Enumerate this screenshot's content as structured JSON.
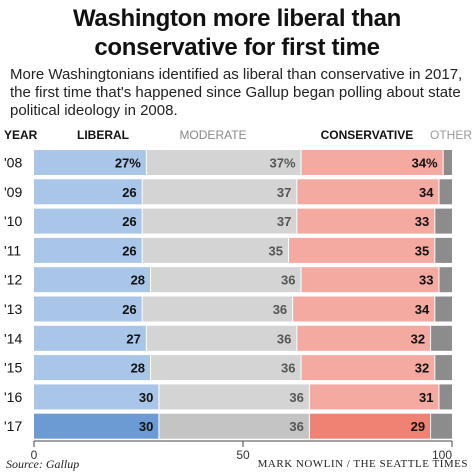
{
  "title_line1": "Washington more liberal than",
  "title_line2": "conservative for first time",
  "subtitle": "More Washingtonians identified as liberal than conservative in 2017, the first time that's happened since Gallup began polling about state political ideology in 2008.",
  "source": "Source: Gallup",
  "credit": "MARK NOWLIN / THE SEATTLE TIMES",
  "colors": {
    "liberal": "#a9c6e8",
    "liberal_highlight": "#6b9bd2",
    "moderate": "#d4d4d4",
    "moderate_highlight": "#c4c4c4",
    "conservative": "#f4a9a1",
    "conservative_highlight": "#ef8273",
    "other": "#8c8c8c",
    "liberal_label": "#111111",
    "moderate_label": "#888888",
    "conservative_label": "#111111",
    "other_label": "#999999"
  },
  "chart_data": {
    "type": "bar",
    "stacked": true,
    "orientation": "horizontal",
    "category_header": "YEAR",
    "categories": [
      "'08",
      "'09",
      "'10",
      "'11",
      "'12",
      "'13",
      "'14",
      "'15",
      "'16",
      "'17"
    ],
    "series": [
      {
        "name": "LIBERAL",
        "values": [
          27,
          26,
          26,
          26,
          28,
          26,
          27,
          28,
          30,
          30
        ]
      },
      {
        "name": "MODERATE",
        "values": [
          37,
          37,
          37,
          35,
          36,
          36,
          36,
          36,
          36,
          36
        ]
      },
      {
        "name": "CONSERVATIVE",
        "values": [
          34,
          34,
          33,
          35,
          33,
          34,
          32,
          32,
          31,
          29
        ]
      },
      {
        "name": "OTHER",
        "values": [
          2,
          3,
          4,
          4,
          3,
          4,
          5,
          4,
          3,
          5
        ]
      }
    ],
    "value_labels": [
      [
        "27%",
        "37%",
        "34%"
      ],
      [
        "26",
        "37",
        "34"
      ],
      [
        "26",
        "37",
        "33"
      ],
      [
        "26",
        "35",
        "35"
      ],
      [
        "28",
        "36",
        "33"
      ],
      [
        "26",
        "36",
        "34"
      ],
      [
        "27",
        "36",
        "32"
      ],
      [
        "28",
        "36",
        "32"
      ],
      [
        "30",
        "36",
        "31"
      ],
      [
        "30",
        "36",
        "29"
      ]
    ],
    "highlight_category": "'17",
    "xlim": [
      0,
      100
    ],
    "x_ticks": [
      "0",
      "50",
      "100"
    ],
    "grid": false,
    "legend": "top"
  }
}
